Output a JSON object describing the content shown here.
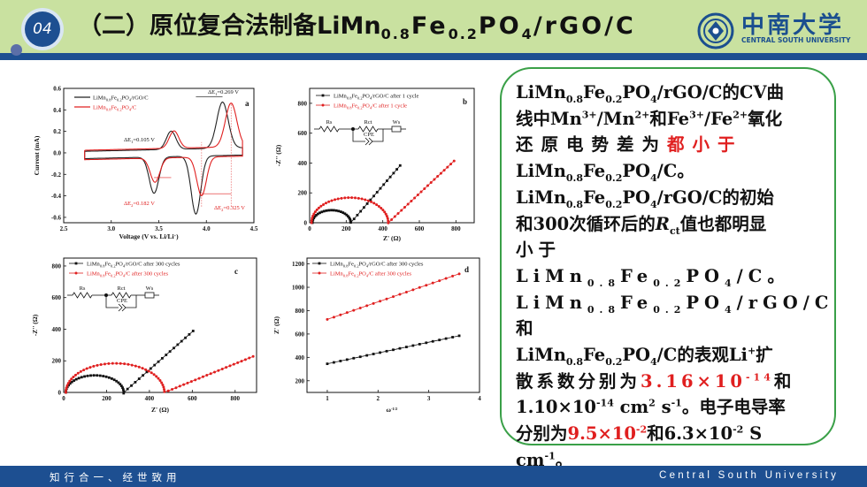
{
  "slide": {
    "section_number": "04",
    "title_prefix": "（二）原位复合法制备LiMn",
    "title_sub1": "0.8",
    "title_mid1": "Fe",
    "title_sub2": "0.2",
    "title_mid2": "PO",
    "title_sub3": "4",
    "title_suffix": "/rGO/C"
  },
  "logo": {
    "name": "中南大学",
    "subtitle": "CENTRAL SOUTH UNIVERSITY"
  },
  "footer": {
    "left": "知行合一、经世致用",
    "right": "Central South University"
  },
  "panel": {
    "l1_a": "LiMn",
    "l1_s1": "0.8",
    "l1_b": "Fe",
    "l1_s2": "0.2",
    "l1_c": "PO",
    "l1_s3": "4",
    "l1_d": "/rGO/C的CV曲",
    "l2_a": "线中Mn",
    "l2_sup1": "3+",
    "l2_b": "/Mn",
    "l2_sup2": "2+",
    "l2_c": "和Fe",
    "l2_sup3": "3+",
    "l2_d": "/Fe",
    "l2_sup4": "2+",
    "l2_e": "氧化",
    "l3_a": "还原电势差为",
    "l3_red": "都小于",
    "l4_a": "LiMn",
    "l4_s1": "0.8",
    "l4_b": "Fe",
    "l4_s2": "0.2",
    "l4_c": "PO",
    "l4_s3": "4",
    "l4_d": "/C。",
    "l5_a": "LiMn",
    "l5_s1": "0.8",
    "l5_b": "Fe",
    "l5_s2": "0.2",
    "l5_c": "PO",
    "l5_s3": "4",
    "l5_d": "/rGO/C的初始",
    "l6_a": "和300次循环后的",
    "l6_r": "R",
    "l6_rs": "ct",
    "l6_b": "值也都明显",
    "l7_a": "小于LiMn",
    "l7_s1": "0.8",
    "l7_b": "Fe",
    "l7_s2": "0.2",
    "l7_c": "PO",
    "l7_s3": "4",
    "l7_d": "/C。",
    "l8_a": "LiMn",
    "l8_s1": "0.8",
    "l8_b": "Fe",
    "l8_s2": "0.2",
    "l8_c": "PO",
    "l8_s3": "4",
    "l8_d": "/rGO/C和",
    "l9_a": "LiMn",
    "l9_s1": "0.8",
    "l9_b": "Fe",
    "l9_s2": "0.2",
    "l9_c": "PO",
    "l9_s3": "4",
    "l9_d": "/C的表观Li",
    "l9_sup": "+",
    "l9_e": "扩",
    "l10_a": "散系数分别为",
    "l10_red": "3.16×10",
    "l10_redsup": "-14",
    "l10_b": "和",
    "l11_a": "1.10×10",
    "l11_sup1": "-14",
    "l11_b": " cm",
    "l11_sup2": "2",
    "l11_c": " s",
    "l11_sup3": "-1",
    "l11_d": "。电子电导率",
    "l12_a": "分别为",
    "l12_red": "9.5×10",
    "l12_redsup": "-2",
    "l12_b": "和6.3×10",
    "l12_sup": "-2",
    "l12_c": " S",
    "l13_a": "cm",
    "l13_sup": "-1",
    "l13_b": "。"
  },
  "chart_data": [
    {
      "type": "line",
      "panel": "a",
      "xlabel": "Voltage (V vs. Li/Li",
      "xlabel_sup": "+",
      "xlabel_end": ")",
      "ylabel": "Current (mA)",
      "xlim": [
        2.5,
        4.5
      ],
      "ylim": [
        -0.65,
        0.6
      ],
      "xticks": [
        2.5,
        3.0,
        3.5,
        4.0,
        4.5
      ],
      "yticks": [
        -0.6,
        -0.4,
        -0.2,
        0.0,
        0.2,
        0.4,
        0.6
      ],
      "xtick_labels": [
        "2.5",
        "3.0",
        "3.5",
        "4.0",
        "4.5"
      ],
      "ytick_labels": [
        "-0.6",
        "-0.4",
        "-0.2",
        "0.0",
        "0.2",
        "0.4",
        "0.6"
      ],
      "legend": [
        {
          "label_a": "LiMn",
          "s1": "0.8",
          "label_b": "Fe",
          "s2": "0.2",
          "label_c": "PO",
          "s3": "4",
          "label_d": "/rGO/C"
        },
        {
          "label_a": "LiMn",
          "s1": "0.8",
          "label_b": "Fe",
          "s2": "0.2",
          "label_c": "PO",
          "s3": "4",
          "label_d": "/C"
        }
      ],
      "annotations": [
        {
          "text": "ΔE",
          "sub": "1",
          "sup": "'",
          "val": "=0.269 V"
        },
        {
          "text": "ΔE",
          "sub": "1",
          "val": "=0.105 V"
        },
        {
          "text": "ΔE",
          "sub": "2",
          "val": "=0.182 V"
        },
        {
          "text": "ΔE",
          "sub": "2",
          "sup": "'",
          "val": "=0.325 V"
        }
      ],
      "colors": {
        "rgo": "#222222",
        "c": "#e02020"
      }
    },
    {
      "type": "scatter",
      "panel": "b",
      "xlabel": "Z' (Ω)",
      "ylabel": "-Z'' (Ω)",
      "xlim": [
        0,
        900
      ],
      "ylim": [
        0,
        900
      ],
      "xtick_labels": [
        "0",
        "200",
        "400",
        "600",
        "800"
      ],
      "ytick_labels": [
        "0",
        "200",
        "400",
        "600",
        "800"
      ],
      "xticks": [
        0,
        200,
        400,
        600,
        800
      ],
      "yticks": [
        0,
        200,
        400,
        600,
        800
      ],
      "series": [
        {
          "name_a": "LiMn",
          "s1": "0.8",
          "name_b": "Fe",
          "s2": "0.2",
          "name_c": "PO",
          "s3": "4",
          "name_d": "/rGO/C after 1 cycle",
          "color": "#111111"
        },
        {
          "name_a": "LiMn",
          "s1": "0.8",
          "name_b": "Fe",
          "s2": "0.2",
          "name_c": "PO",
          "s3": "4",
          "name_d": "/C after 1 cycle",
          "color": "#e02020"
        }
      ],
      "circuit": {
        "rs": "Rs",
        "rct": "Rct",
        "ws": "Ws",
        "cpe": "CPE"
      }
    },
    {
      "type": "scatter",
      "panel": "c",
      "xlabel": "Z' (Ω)",
      "ylabel": "-Z'' (Ω)",
      "xlim": [
        0,
        900
      ],
      "ylim": [
        0,
        850
      ],
      "xtick_labels": [
        "0",
        "200",
        "400",
        "600",
        "800"
      ],
      "ytick_labels": [
        "0",
        "200",
        "400",
        "600",
        "800"
      ],
      "xticks": [
        0,
        200,
        400,
        600,
        800
      ],
      "yticks": [
        0,
        200,
        400,
        600,
        800
      ],
      "series": [
        {
          "name_a": "LiMn",
          "s1": "0.8",
          "name_b": "Fe",
          "s2": "0.2",
          "name_c": "PO",
          "s3": "4",
          "name_d": "/rGO/C after 300 cycles",
          "color": "#111111"
        },
        {
          "name_a": "LiMn",
          "s1": "0.8",
          "name_b": "Fe",
          "s2": "0.2",
          "name_c": "PO",
          "s3": "4",
          "name_d": "/C after 300 cycles",
          "color": "#e02020"
        }
      ],
      "circuit": {
        "rs": "Rs",
        "rct": "Rct",
        "ws": "Ws",
        "cpe": "CPE"
      }
    },
    {
      "type": "line",
      "panel": "d",
      "xlabel": "ω",
      "xlabel_sup": "-1/2",
      "ylabel": "Z' (Ω)",
      "xlim": [
        0.6,
        4.0
      ],
      "ylim": [
        100,
        1250
      ],
      "xtick_labels": [
        "1",
        "2",
        "3",
        "4"
      ],
      "ytick_labels": [
        "200",
        "400",
        "600",
        "800",
        "1000",
        "1200"
      ],
      "xticks": [
        1,
        2,
        3,
        4
      ],
      "yticks": [
        200,
        400,
        600,
        800,
        1000,
        1200
      ],
      "series": [
        {
          "name_a": "LiMn",
          "s1": "0.8",
          "name_b": "Fe",
          "s2": "0.2",
          "name_c": "PO",
          "s3": "4",
          "name_d": "/rGO/C after 300 cycles",
          "color": "#111111",
          "x_start": 1.0,
          "x_end": 3.6,
          "y_start": 345,
          "y_end": 585
        },
        {
          "name_a": "LiMn",
          "s1": "0.8",
          "name_b": "Fe",
          "s2": "0.2",
          "name_c": "PO",
          "s3": "4",
          "name_d": "/C after 300 cycles",
          "color": "#e02020",
          "x_start": 1.0,
          "x_end": 3.6,
          "y_start": 725,
          "y_end": 1115
        }
      ]
    }
  ]
}
